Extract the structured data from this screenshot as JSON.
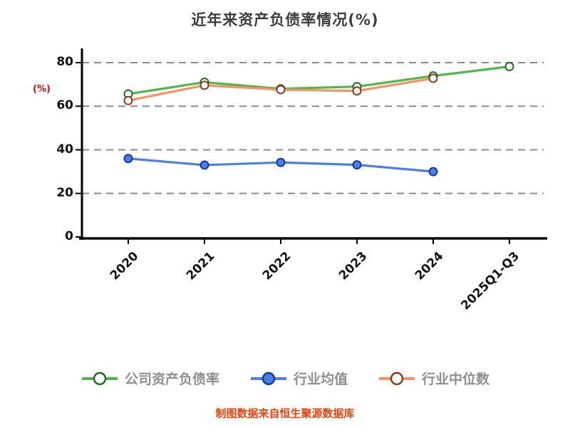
{
  "title": "近年来资产负债率情况(%)",
  "y_axis_label": "(%)",
  "footer": "制图数据来自恒生聚源数据库",
  "chart_data": {
    "type": "line",
    "title": "近年来资产负债率情况(%)",
    "ylabel": "(%)",
    "categories": [
      "2020",
      "2021",
      "2022",
      "2023",
      "2024",
      "2025Q1-Q3"
    ],
    "series": [
      {
        "name": "公司资产负债率",
        "color": "#4db848",
        "marker_fill": "#ffffff",
        "marker_stroke": "#1f6b1f",
        "values": [
          65.6,
          71.0,
          68.0,
          69.0,
          73.9,
          78.2
        ]
      },
      {
        "name": "行业均值",
        "color": "#4a7fe8",
        "marker_fill": "#4a7fe8",
        "marker_stroke": "#16399d",
        "values": [
          36.0,
          33.0,
          34.2,
          33.1,
          30.0,
          null
        ]
      },
      {
        "name": "行业中位数",
        "color": "#f79066",
        "marker_fill": "#ffffff",
        "marker_stroke": "#8a3a1a",
        "values": [
          62.6,
          69.6,
          67.6,
          67.0,
          72.8,
          null
        ]
      }
    ],
    "yticks": [
      0,
      20,
      40,
      60,
      80
    ],
    "ylim": [
      0,
      84
    ],
    "grid": "horizontal-dashed",
    "legend_position": "bottom"
  },
  "style": {
    "grid_color": "#8c8c8c",
    "axis_color": "#000000",
    "title_color": "#3d3d3d",
    "footer_color": "#e8430c",
    "ylabel_color": "#e60000"
  }
}
